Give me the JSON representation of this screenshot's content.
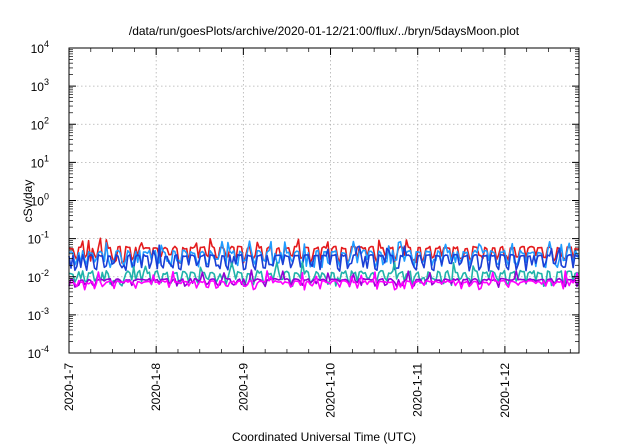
{
  "chart_data": {
    "type": "line",
    "title": "/data/run/goesPlots/archive/2020-01-12/21:00/flux/../bryn/5daysMoon.plot",
    "xlabel": "Coordinated Universal Time (UTC)",
    "ylabel": "cSv/day",
    "yscale": "log",
    "ylim": [
      0.0001,
      10000
    ],
    "xlim_days": [
      0,
      5.85
    ],
    "grid": true,
    "y_ticks": [
      {
        "value": 0.0001,
        "base": "10",
        "exp": "-4"
      },
      {
        "value": 0.001,
        "base": "10",
        "exp": "-3"
      },
      {
        "value": 0.01,
        "base": "10",
        "exp": "-2"
      },
      {
        "value": 0.1,
        "base": "10",
        "exp": "-1"
      },
      {
        "value": 1,
        "base": "10",
        "exp": "0"
      },
      {
        "value": 10,
        "base": "10",
        "exp": "1"
      },
      {
        "value": 100,
        "base": "10",
        "exp": "2"
      },
      {
        "value": 1000,
        "base": "10",
        "exp": "3"
      },
      {
        "value": 10000,
        "base": "10",
        "exp": "4"
      }
    ],
    "x_ticks": [
      "2020-1-7",
      "2020-1-8",
      "2020-1-9",
      "2020-1-10",
      "2020-1-11",
      "2020-1-12"
    ],
    "series": [
      {
        "color": "#e41a1c",
        "base": 0.058,
        "dips": 0.032,
        "noise": 0.08,
        "seed": 11
      },
      {
        "color": "#1f9bff",
        "base": 0.045,
        "dips": 0.025,
        "noise": 0.1,
        "seed": 23
      },
      {
        "color": "#1a3fd6",
        "base": 0.036,
        "dips": 0.02,
        "noise": 0.06,
        "seed": 37
      },
      {
        "color": "#20b2aa",
        "base": 0.013,
        "dips": 0.008,
        "noise": 0.12,
        "seed": 41
      },
      {
        "color": "#9400d3",
        "base": 0.0085,
        "dips": 0.0075,
        "noise": 0.05,
        "seed": 53
      },
      {
        "color": "#ff00ff",
        "base": 0.0075,
        "dips": 0.0065,
        "noise": 0.06,
        "seed": 67
      }
    ]
  }
}
